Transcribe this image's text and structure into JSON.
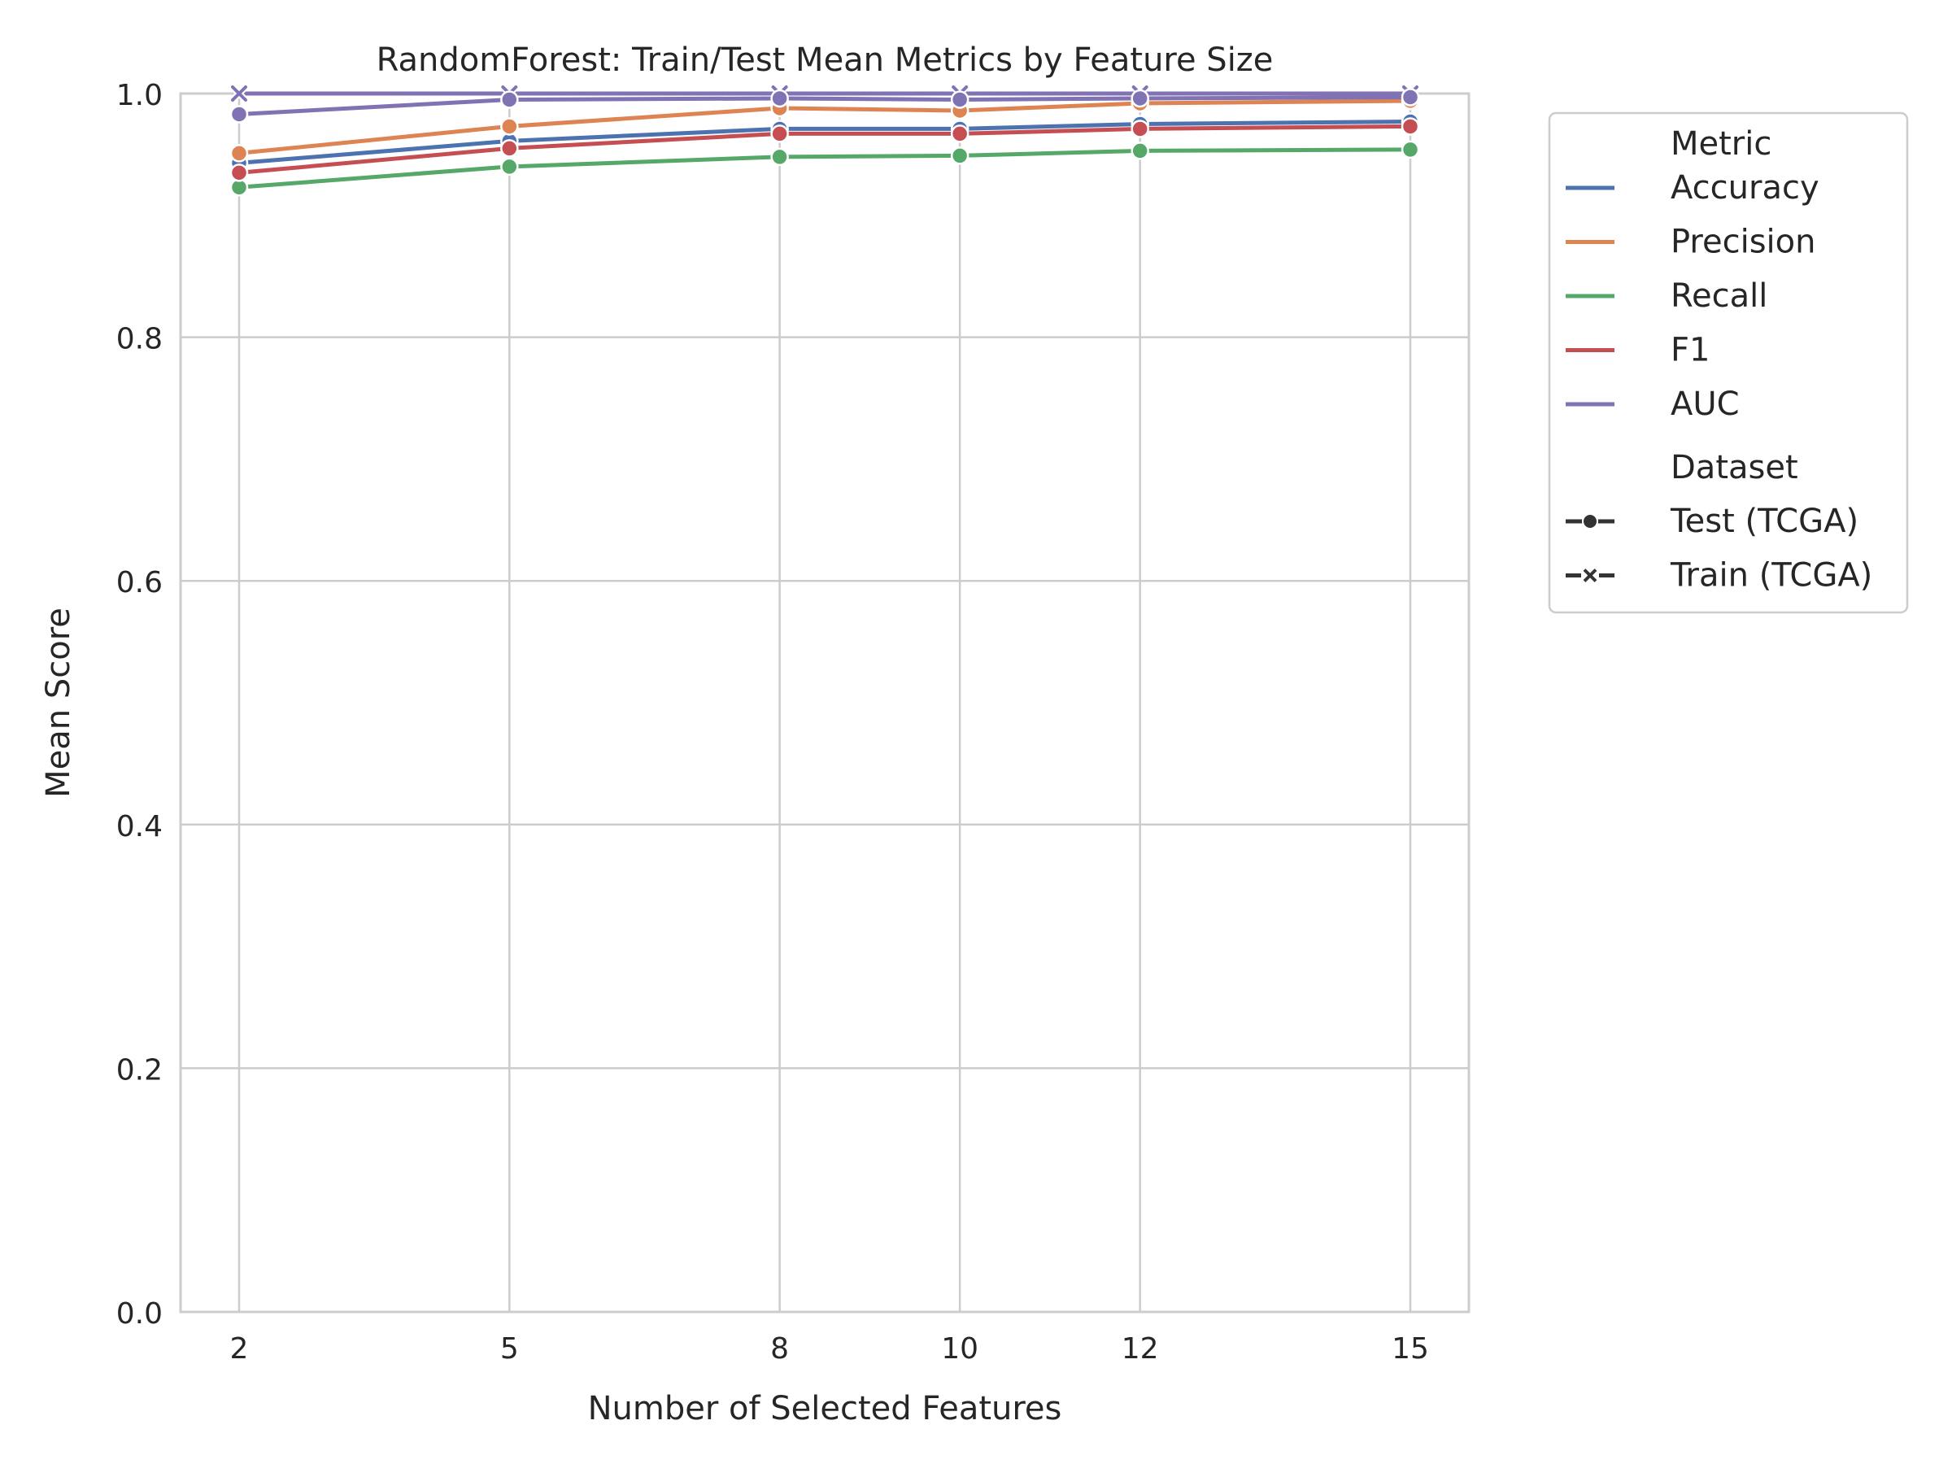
{
  "chart_data": {
    "type": "line",
    "title": "RandomForest: Train/Test Mean Metrics by Feature Size",
    "xlabel": "Number of Selected Features",
    "ylabel": "Mean Score",
    "x": [
      2,
      5,
      8,
      10,
      12,
      15
    ],
    "x_tick_labels": [
      "2",
      "5",
      "8",
      "10",
      "12",
      "15"
    ],
    "xlim": [
      1.35,
      15.65
    ],
    "ylim": [
      0,
      1
    ],
    "y_ticks": [
      0.0,
      0.2,
      0.4,
      0.6,
      0.8,
      1.0
    ],
    "y_tick_labels": [
      "0.0",
      "0.2",
      "0.4",
      "0.6",
      "0.8",
      "1.0"
    ],
    "grid": true,
    "legend": {
      "placement": "outside-right-top",
      "metric_title": "Metric",
      "dataset_title": "Dataset",
      "metrics": [
        "Accuracy",
        "Precision",
        "Recall",
        "F1",
        "AUC"
      ],
      "datasets": [
        {
          "name": "Test (TCGA)",
          "marker": "circle"
        },
        {
          "name": "Train (TCGA)",
          "marker": "x"
        }
      ]
    },
    "colors": {
      "Accuracy": "#4c72b0",
      "Precision": "#dd8452",
      "Recall": "#55a868",
      "F1": "#c44e52",
      "AUC": "#8172b3"
    },
    "series": [
      {
        "metric": "Accuracy",
        "dataset": "Test (TCGA)",
        "values": [
          0.943,
          0.961,
          0.971,
          0.971,
          0.975,
          0.977
        ]
      },
      {
        "metric": "Precision",
        "dataset": "Test (TCGA)",
        "values": [
          0.951,
          0.973,
          0.988,
          0.986,
          0.992,
          0.994
        ]
      },
      {
        "metric": "Recall",
        "dataset": "Test (TCGA)",
        "values": [
          0.923,
          0.94,
          0.948,
          0.949,
          0.953,
          0.954
        ]
      },
      {
        "metric": "F1",
        "dataset": "Test (TCGA)",
        "values": [
          0.935,
          0.955,
          0.967,
          0.967,
          0.971,
          0.973
        ]
      },
      {
        "metric": "AUC",
        "dataset": "Test (TCGA)",
        "values": [
          0.983,
          0.995,
          0.996,
          0.995,
          0.996,
          0.997
        ]
      },
      {
        "metric": "Accuracy",
        "dataset": "Train (TCGA)",
        "values": [
          1.0,
          1.0,
          1.0,
          1.0,
          1.0,
          1.0
        ]
      },
      {
        "metric": "Precision",
        "dataset": "Train (TCGA)",
        "values": [
          1.0,
          1.0,
          1.0,
          1.0,
          1.0,
          1.0
        ]
      },
      {
        "metric": "Recall",
        "dataset": "Train (TCGA)",
        "values": [
          1.0,
          1.0,
          1.0,
          1.0,
          1.0,
          1.0
        ]
      },
      {
        "metric": "F1",
        "dataset": "Train (TCGA)",
        "values": [
          1.0,
          1.0,
          1.0,
          1.0,
          1.0,
          1.0
        ]
      },
      {
        "metric": "AUC",
        "dataset": "Train (TCGA)",
        "values": [
          1.0,
          1.0,
          1.0,
          1.0,
          1.0,
          1.0
        ]
      }
    ]
  }
}
